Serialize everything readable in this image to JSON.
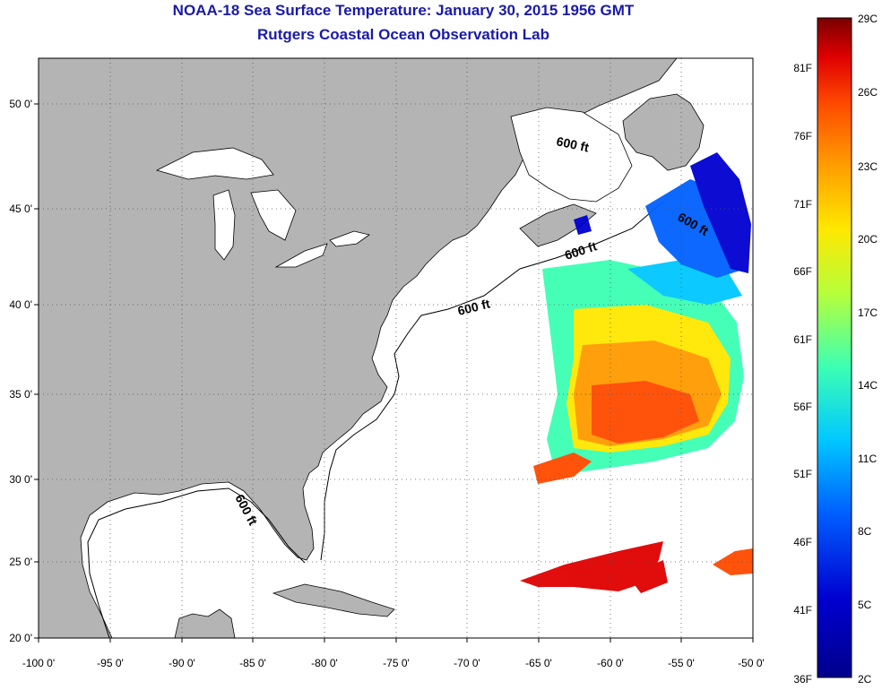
{
  "header": {
    "title": "NOAA-18 Sea Surface Temperature:  January 30, 2015 1956 GMT",
    "subtitle": "Rutgers Coastal Ocean Observation Lab"
  },
  "map": {
    "lon_range": [
      -100,
      -50
    ],
    "lat_range": [
      20,
      52.5
    ],
    "lon_ticks": [
      "-100 0'",
      "-95 0'",
      "-90 0'",
      "-85 0'",
      "-80 0'",
      "-75 0'",
      "-70 0'",
      "-65 0'",
      "-60 0'",
      "-55 0'",
      "-50 0'"
    ],
    "lat_ticks": [
      "20 0'",
      "25 0'",
      "30 0'",
      "35 0'",
      "40 0'",
      "45 0'",
      "50 0'"
    ],
    "land_color": "#b4b4b4",
    "ocean_color": "#ffffff",
    "contour_label": "600 ft"
  },
  "colorbar": {
    "celsius_labels": [
      "29C",
      "26C",
      "23C",
      "20C",
      "17C",
      "14C",
      "11C",
      "8C",
      "5C",
      "2C"
    ],
    "fahrenheit_labels": [
      "81F",
      "76F",
      "71F",
      "66F",
      "61F",
      "56F",
      "51F",
      "46F",
      "41F",
      "36F"
    ],
    "colors": [
      "#7a0000",
      "#e00000",
      "#ff4a00",
      "#ff9a00",
      "#ffe800",
      "#b4ff3c",
      "#3cffb4",
      "#00c8ff",
      "#0060ff",
      "#0000d0",
      "#00008c"
    ]
  }
}
